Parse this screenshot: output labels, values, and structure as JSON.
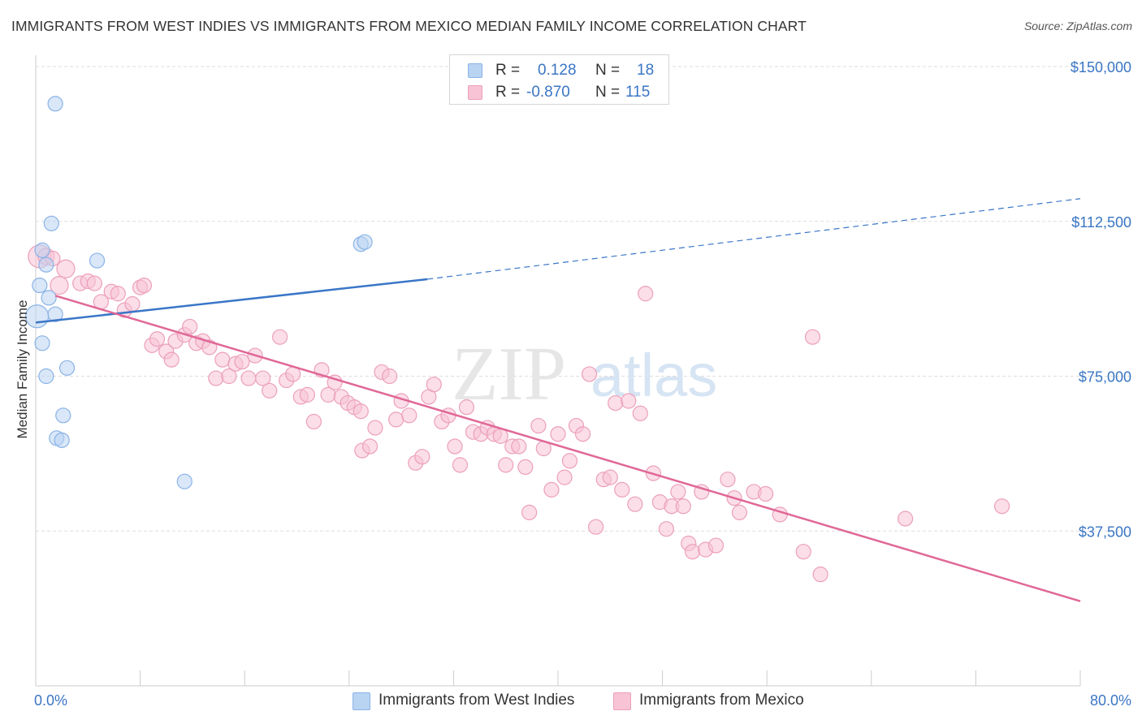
{
  "title": "IMMIGRANTS FROM WEST INDIES VS IMMIGRANTS FROM MEXICO MEDIAN FAMILY INCOME CORRELATION CHART",
  "source": "Source: ZipAtlas.com",
  "watermark": {
    "zip": "ZIP",
    "atlas": "atlas"
  },
  "colors": {
    "blue_fill": "#b9d3f3",
    "blue_stroke": "#8ab3e6",
    "blue_line": "#3a76c8",
    "pink_fill": "#f7c3d5",
    "pink_stroke": "#ec9fbb",
    "pink_line": "#e06896",
    "tick_text": "#3a76c4",
    "grid": "#dddddd"
  },
  "legend": {
    "rows": [
      {
        "r_label": "R =",
        "r_value": "0.128",
        "n_label": "N =",
        "n_value": "18"
      },
      {
        "r_label": "R =",
        "r_value": "-0.870",
        "n_label": "N =",
        "n_value": "115"
      }
    ]
  },
  "chart_data": {
    "type": "scatter",
    "xlabel": "",
    "ylabel": "Median Family Income",
    "x_tick_labels": [
      "0.0%",
      "80.0%"
    ],
    "y_tick_labels": [
      "$150,000",
      "$112,500",
      "$75,000",
      "$37,500"
    ],
    "y_ticks": [
      150000,
      112500,
      75000,
      37500
    ],
    "xlim": [
      0,
      80
    ],
    "ylim": [
      0,
      155000
    ],
    "grid": "horizontal dashed",
    "legend_position": "top-center",
    "series": [
      {
        "name": "Immigrants from West Indies",
        "color": "blue",
        "trend": {
          "x1": 0,
          "y1": 88000,
          "x2": 30,
          "y2": 98500,
          "dashed_to_x": 80,
          "dashed_to_y": 118000
        },
        "points": [
          [
            1.5,
            141000,
            9
          ],
          [
            1.2,
            112000,
            9
          ],
          [
            0.5,
            105500,
            9
          ],
          [
            0.8,
            102000,
            9
          ],
          [
            4.7,
            103000,
            9
          ],
          [
            0.3,
            97000,
            9
          ],
          [
            1.0,
            94000,
            9
          ],
          [
            1.5,
            90000,
            9
          ],
          [
            0.1,
            89500,
            14
          ],
          [
            0.5,
            83000,
            9
          ],
          [
            0.8,
            75000,
            9
          ],
          [
            2.4,
            77000,
            9
          ],
          [
            2.1,
            65500,
            9
          ],
          [
            1.6,
            60000,
            9
          ],
          [
            2.0,
            59500,
            9
          ],
          [
            11.4,
            49500,
            9
          ],
          [
            24.9,
            107000,
            9
          ],
          [
            25.2,
            107500,
            9
          ]
        ]
      },
      {
        "name": "Immigrants from Mexico",
        "color": "pink",
        "trend": {
          "x1": 1.5,
          "y1": 94500,
          "x2": 80,
          "y2": 20500
        },
        "points": [
          [
            0.3,
            104000,
            14
          ],
          [
            0.8,
            104000,
            10
          ],
          [
            1.3,
            103500,
            9
          ],
          [
            2.3,
            101000,
            11
          ],
          [
            1.8,
            97000,
            11
          ],
          [
            3.4,
            97500,
            9
          ],
          [
            4.0,
            98000,
            9
          ],
          [
            4.5,
            97500,
            9
          ],
          [
            5.0,
            93000,
            9
          ],
          [
            5.8,
            95500,
            9
          ],
          [
            6.3,
            95000,
            9
          ],
          [
            6.8,
            91000,
            9
          ],
          [
            7.4,
            92500,
            9
          ],
          [
            8.0,
            96500,
            9
          ],
          [
            8.3,
            97000,
            9
          ],
          [
            8.9,
            82500,
            9
          ],
          [
            9.3,
            84000,
            9
          ],
          [
            10.0,
            81000,
            9
          ],
          [
            10.4,
            79000,
            9
          ],
          [
            10.7,
            83500,
            9
          ],
          [
            11.4,
            85000,
            9
          ],
          [
            11.8,
            87000,
            9
          ],
          [
            12.3,
            83000,
            9
          ],
          [
            12.8,
            83500,
            9
          ],
          [
            13.3,
            82000,
            9
          ],
          [
            13.8,
            74500,
            9
          ],
          [
            14.3,
            79000,
            9
          ],
          [
            14.8,
            75000,
            9
          ],
          [
            15.3,
            78000,
            9
          ],
          [
            15.8,
            78500,
            9
          ],
          [
            16.3,
            74500,
            9
          ],
          [
            16.8,
            80000,
            9
          ],
          [
            17.4,
            74500,
            9
          ],
          [
            17.9,
            71500,
            9
          ],
          [
            18.7,
            84500,
            9
          ],
          [
            19.2,
            74000,
            9
          ],
          [
            19.7,
            75500,
            9
          ],
          [
            20.3,
            70000,
            9
          ],
          [
            20.8,
            70500,
            9
          ],
          [
            21.3,
            64000,
            9
          ],
          [
            21.9,
            76500,
            9
          ],
          [
            22.4,
            70500,
            9
          ],
          [
            22.9,
            73500,
            9
          ],
          [
            23.4,
            70000,
            9
          ],
          [
            23.9,
            68500,
            9
          ],
          [
            24.4,
            67500,
            9
          ],
          [
            24.9,
            66500,
            9
          ],
          [
            25.0,
            57000,
            9
          ],
          [
            25.6,
            58000,
            9
          ],
          [
            26.0,
            62500,
            9
          ],
          [
            26.5,
            76000,
            9
          ],
          [
            27.1,
            75000,
            9
          ],
          [
            27.6,
            64500,
            9
          ],
          [
            28.0,
            69000,
            9
          ],
          [
            28.6,
            65500,
            9
          ],
          [
            29.1,
            54000,
            9
          ],
          [
            29.6,
            55500,
            9
          ],
          [
            30.1,
            70000,
            9
          ],
          [
            30.5,
            73000,
            9
          ],
          [
            31.1,
            64000,
            9
          ],
          [
            31.6,
            65500,
            9
          ],
          [
            32.1,
            58000,
            9
          ],
          [
            32.5,
            53500,
            9
          ],
          [
            33.0,
            67500,
            9
          ],
          [
            33.5,
            61500,
            9
          ],
          [
            34.1,
            61000,
            9
          ],
          [
            34.6,
            62500,
            9
          ],
          [
            35.1,
            61000,
            9
          ],
          [
            35.6,
            60500,
            9
          ],
          [
            36.0,
            53500,
            9
          ],
          [
            36.5,
            58000,
            9
          ],
          [
            37.0,
            58000,
            9
          ],
          [
            37.5,
            53000,
            9
          ],
          [
            37.8,
            42000,
            9
          ],
          [
            38.5,
            63000,
            9
          ],
          [
            38.9,
            57500,
            9
          ],
          [
            39.5,
            47500,
            9
          ],
          [
            40.0,
            61000,
            9
          ],
          [
            40.5,
            50500,
            9
          ],
          [
            40.9,
            54500,
            9
          ],
          [
            41.4,
            63000,
            9
          ],
          [
            41.9,
            61000,
            9
          ],
          [
            42.4,
            75500,
            9
          ],
          [
            42.9,
            38500,
            9
          ],
          [
            43.5,
            50000,
            9
          ],
          [
            44.0,
            50500,
            9
          ],
          [
            44.4,
            68500,
            9
          ],
          [
            44.9,
            47500,
            9
          ],
          [
            45.4,
            69000,
            9
          ],
          [
            45.9,
            44000,
            9
          ],
          [
            46.3,
            66000,
            9
          ],
          [
            46.7,
            95000,
            9
          ],
          [
            47.3,
            51500,
            9
          ],
          [
            47.8,
            44500,
            9
          ],
          [
            48.3,
            38000,
            9
          ],
          [
            48.7,
            43500,
            9
          ],
          [
            49.2,
            47000,
            9
          ],
          [
            49.6,
            43500,
            9
          ],
          [
            50.0,
            34500,
            9
          ],
          [
            50.3,
            32500,
            9
          ],
          [
            51.0,
            47000,
            9
          ],
          [
            51.3,
            33000,
            9
          ],
          [
            52.1,
            34000,
            9
          ],
          [
            53.0,
            50000,
            9
          ],
          [
            53.5,
            45500,
            9
          ],
          [
            53.9,
            42000,
            9
          ],
          [
            55.0,
            47000,
            9
          ],
          [
            55.9,
            46500,
            9
          ],
          [
            57.0,
            41500,
            9
          ],
          [
            58.8,
            32500,
            9
          ],
          [
            59.5,
            84500,
            9
          ],
          [
            60.1,
            27000,
            9
          ],
          [
            66.6,
            40500,
            9
          ],
          [
            74.0,
            43500,
            9
          ]
        ]
      }
    ]
  },
  "bottom_legend": [
    {
      "label": "Immigrants from West Indies"
    },
    {
      "label": "Immigrants from Mexico"
    }
  ]
}
